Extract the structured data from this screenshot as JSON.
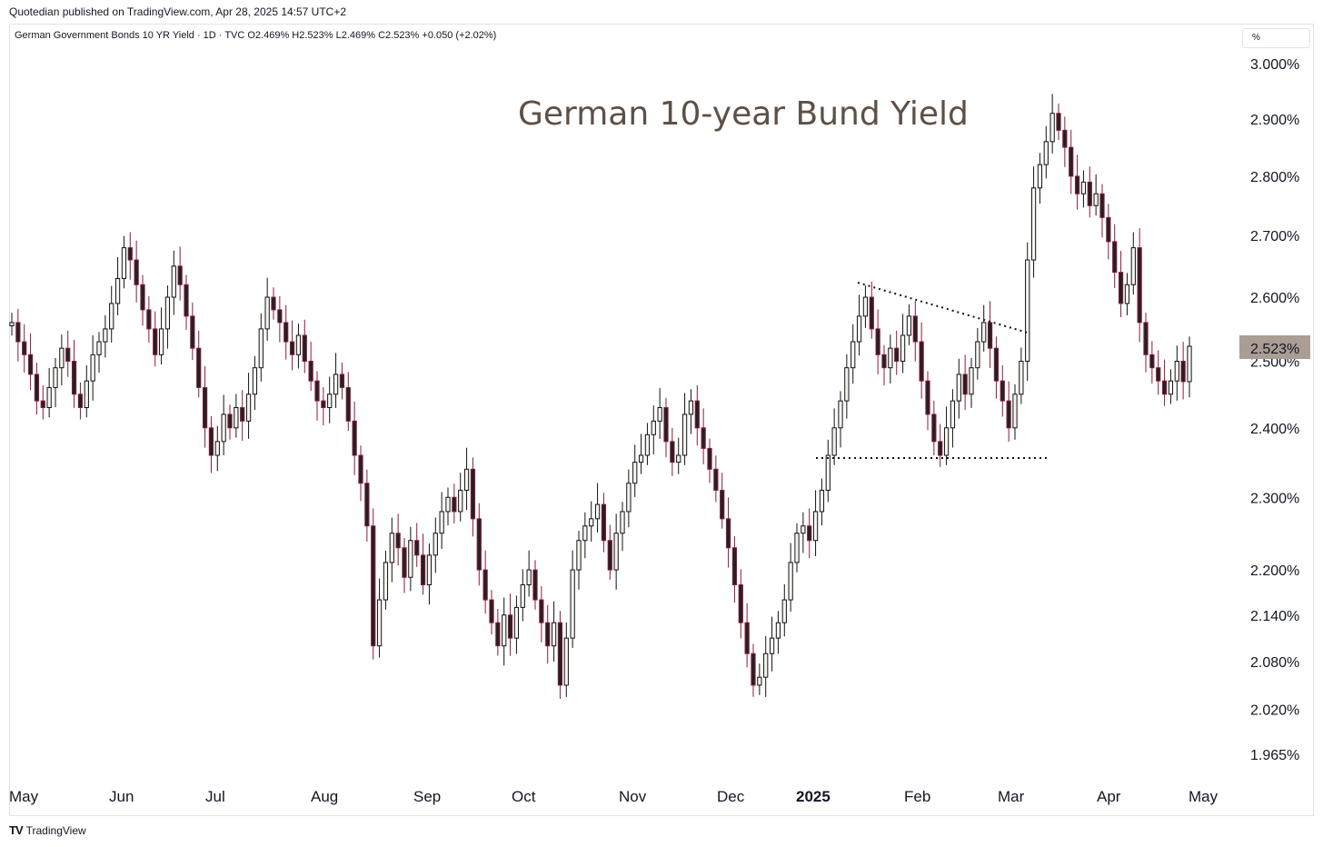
{
  "header": {
    "published": "Quotedian published on TradingView.com, Apr 28, 2025 14:57 UTC+2",
    "legend": "German Government Bonds 10 YR Yield · 1D · TVC  O2.469%  H2.523%  L2.469%  C2.523%  +0.050 (+2.02%)",
    "unit": "%"
  },
  "footer": {
    "logo": "TV",
    "brand": "TradingView"
  },
  "chart_data": {
    "type": "candlestick",
    "title": "German 10-year Bund Yield",
    "y_scale": "log",
    "ylim": [
      1.93,
      3.04
    ],
    "y_ticks": [
      "3.000%",
      "2.900%",
      "2.800%",
      "2.700%",
      "2.600%",
      "2.500%",
      "2.400%",
      "2.300%",
      "2.200%",
      "2.140%",
      "2.080%",
      "2.020%",
      "1.965%"
    ],
    "x_ticks": [
      "May",
      "Jun",
      "Jul",
      "Aug",
      "Sep",
      "Oct",
      "Nov",
      "Dec",
      "2025",
      "Feb",
      "Mar",
      "Apr",
      "May"
    ],
    "last_price_label": "2.523%",
    "last_price": 2.523,
    "colors": {
      "up": "#f5f5f0",
      "down": "#8b1a3a",
      "outline": "#111111",
      "price_tag": "#a99d94",
      "title": "#5d5045"
    },
    "closes": [
      2.56,
      2.53,
      2.51,
      2.48,
      2.44,
      2.43,
      2.46,
      2.49,
      2.52,
      2.5,
      2.45,
      2.43,
      2.47,
      2.51,
      2.53,
      2.55,
      2.59,
      2.63,
      2.68,
      2.66,
      2.62,
      2.58,
      2.55,
      2.51,
      2.55,
      2.6,
      2.65,
      2.62,
      2.57,
      2.52,
      2.46,
      2.4,
      2.36,
      2.38,
      2.42,
      2.4,
      2.43,
      2.41,
      2.45,
      2.49,
      2.55,
      2.6,
      2.58,
      2.56,
      2.53,
      2.51,
      2.54,
      2.5,
      2.47,
      2.44,
      2.43,
      2.45,
      2.48,
      2.46,
      2.41,
      2.36,
      2.32,
      2.26,
      2.1,
      2.16,
      2.21,
      2.25,
      2.23,
      2.19,
      2.24,
      2.22,
      2.18,
      2.22,
      2.25,
      2.28,
      2.3,
      2.28,
      2.31,
      2.34,
      2.27,
      2.2,
      2.16,
      2.13,
      2.1,
      2.14,
      2.11,
      2.15,
      2.18,
      2.2,
      2.16,
      2.13,
      2.1,
      2.13,
      2.05,
      2.11,
      2.2,
      2.24,
      2.26,
      2.27,
      2.29,
      2.24,
      2.2,
      2.25,
      2.28,
      2.32,
      2.35,
      2.36,
      2.39,
      2.41,
      2.43,
      2.38,
      2.35,
      2.36,
      2.42,
      2.44,
      2.4,
      2.37,
      2.34,
      2.31,
      2.27,
      2.23,
      2.18,
      2.13,
      2.09,
      2.05,
      2.06,
      2.09,
      2.11,
      2.13,
      2.16,
      2.21,
      2.25,
      2.26,
      2.24,
      2.28,
      2.31,
      2.36,
      2.4,
      2.44,
      2.49,
      2.53,
      2.57,
      2.6,
      2.55,
      2.51,
      2.49,
      2.52,
      2.5,
      2.54,
      2.57,
      2.53,
      2.47,
      2.42,
      2.38,
      2.36,
      2.4,
      2.44,
      2.48,
      2.45,
      2.49,
      2.53,
      2.56,
      2.52,
      2.47,
      2.44,
      2.4,
      2.45,
      2.5,
      2.66,
      2.78,
      2.82,
      2.86,
      2.91,
      2.88,
      2.85,
      2.8,
      2.77,
      2.79,
      2.75,
      2.77,
      2.73,
      2.69,
      2.64,
      2.59,
      2.62,
      2.68,
      2.56,
      2.51,
      2.49,
      2.47,
      2.45,
      2.47,
      2.5,
      2.469,
      2.523
    ]
  }
}
